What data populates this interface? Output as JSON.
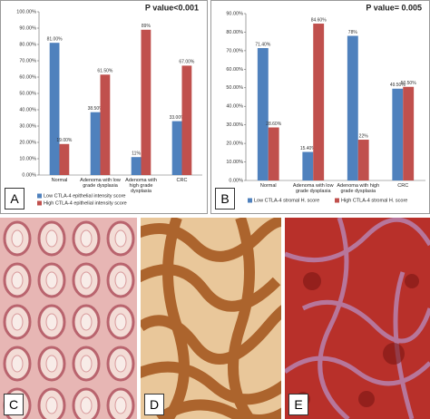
{
  "chart_data": [
    {
      "type": "bar",
      "title": "P value<0.001",
      "panel_label": "A",
      "categories": [
        "Normal",
        "Adenoma with low grade dysplasia",
        "Adenoma with high grade dysplasia",
        "CRC"
      ],
      "series": [
        {
          "name": "Low CTLA-4 epithelial intensity score",
          "color": "#4f81bd",
          "values": [
            81,
            38.5,
            11,
            33
          ],
          "value_labels": [
            "81.00%",
            "38.50%",
            "11%",
            "33.00%"
          ]
        },
        {
          "name": "High CTLA-4 epithelial intensity score",
          "color": "#c0504d",
          "values": [
            19,
            61.5,
            89,
            67
          ],
          "value_labels": [
            "19.00%",
            "61.50%",
            "89%",
            "67.00%"
          ]
        }
      ],
      "ylim": [
        0,
        100
      ],
      "yticks": [
        {
          "value": 0,
          "label": "0.00%"
        },
        {
          "value": 10,
          "label": "10.00%"
        },
        {
          "value": 20,
          "label": "20.00%"
        },
        {
          "value": 30,
          "label": "30.00%"
        },
        {
          "value": 40,
          "label": "40.00%"
        },
        {
          "value": 50,
          "label": "50.00%"
        },
        {
          "value": 60,
          "label": "60.00%"
        },
        {
          "value": 70,
          "label": "70.00%"
        },
        {
          "value": 80,
          "label": "80.00%"
        },
        {
          "value": 90,
          "label": "90.00%"
        },
        {
          "value": 100,
          "label": "100.00%"
        }
      ],
      "legend": "bottom"
    },
    {
      "type": "bar",
      "title": "P value= 0.005",
      "panel_label": "B",
      "categories": [
        "Normal",
        "Adenoma with low grade dysplasia",
        "Adenoma with high grade dysplasia",
        "CRC"
      ],
      "series": [
        {
          "name": "Low CTLA-4 stromal H. score",
          "color": "#4f81bd",
          "values": [
            71.4,
            15.4,
            78,
            49.5
          ],
          "value_labels": [
            "71.40%",
            "15.40%",
            "78%",
            "49.50%"
          ]
        },
        {
          "name": "High CTLA-4 stromal H. score",
          "color": "#c0504d",
          "values": [
            28.6,
            84.6,
            22,
            50.5
          ],
          "value_labels": [
            "28.60%",
            "84.60%",
            "22%",
            "50.50%"
          ]
        }
      ],
      "ylim": [
        0,
        90
      ],
      "yticks": [
        {
          "value": 0,
          "label": "0.00%"
        },
        {
          "value": 10,
          "label": "10.00%"
        },
        {
          "value": 20,
          "label": "20.00%"
        },
        {
          "value": 30,
          "label": "30.00%"
        },
        {
          "value": 40,
          "label": "40.00%"
        },
        {
          "value": 50,
          "label": "50.00%"
        },
        {
          "value": 60,
          "label": "60.00%"
        },
        {
          "value": 70,
          "label": "70.00%"
        },
        {
          "value": 80,
          "label": "80.00%"
        },
        {
          "value": 90,
          "label": "90.00%"
        }
      ],
      "legend": "bottom"
    }
  ],
  "image_panels": [
    "C",
    "D",
    "E"
  ]
}
